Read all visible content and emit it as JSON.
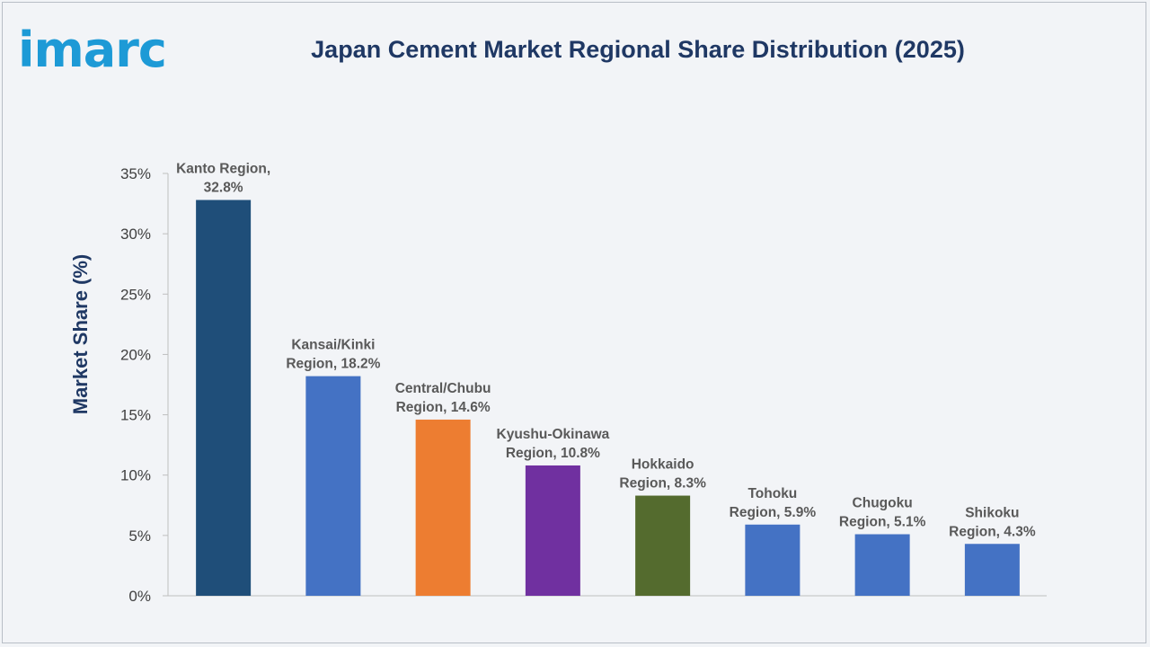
{
  "brand": {
    "logo_text": "imarc"
  },
  "chart_data": {
    "type": "bar",
    "title": "Japan Cement Market Regional Share Distribution (2025)",
    "xlabel": "",
    "ylabel": "Market Share (%)",
    "ylim": [
      0,
      35
    ],
    "yticks": [
      "0%",
      "5%",
      "10%",
      "15%",
      "20%",
      "25%",
      "30%",
      "35%"
    ],
    "ytick_values": [
      0,
      5,
      10,
      15,
      20,
      25,
      30,
      35
    ],
    "grid": false,
    "legend": "none",
    "categories": [
      "Kanto Region",
      "Kansai/Kinki Region",
      "Central/Chubu Region",
      "Kyushu-Okinawa Region",
      "Hokkaido Region",
      "Tohoku Region",
      "Chugoku Region",
      "Shikoku Region"
    ],
    "values": [
      32.8,
      18.2,
      14.6,
      10.8,
      8.3,
      5.9,
      5.1,
      4.3
    ],
    "data_labels": [
      [
        "Kanto Region,",
        "32.8%"
      ],
      [
        "Kansai/Kinki",
        "Region, 18.2%"
      ],
      [
        "Central/Chubu",
        "Region, 14.6%"
      ],
      [
        "Kyushu-Okinawa",
        "Region, 10.8%"
      ],
      [
        "Hokkaido",
        "Region, 8.3%"
      ],
      [
        "Tohoku",
        "Region, 5.9%"
      ],
      [
        "Chugoku",
        "Region, 5.1%"
      ],
      [
        "Shikoku",
        "Region, 4.3%"
      ]
    ],
    "colors": [
      "#1f4e79",
      "#4472c4",
      "#ed7d31",
      "#7030a0",
      "#546b2e",
      "#4472c4",
      "#4472c4",
      "#4472c4"
    ]
  }
}
